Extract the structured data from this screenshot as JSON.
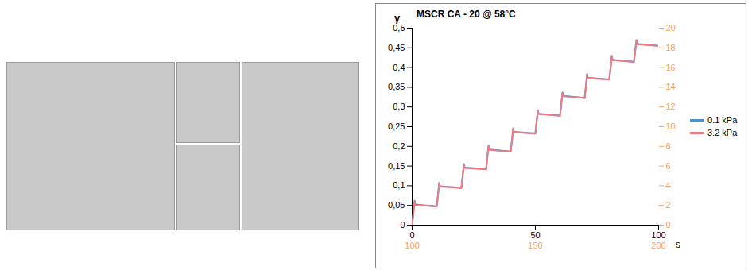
{
  "chart_data": {
    "type": "line",
    "title": "MSCR CA - 20 @ 58°C",
    "y_label": "γ",
    "x_label": "s",
    "xlim": [
      0,
      100
    ],
    "xticks": [
      0,
      50,
      100
    ],
    "x2lim": [
      100,
      200
    ],
    "x2ticks": [
      100,
      150,
      200
    ],
    "ylim": [
      0,
      0.5
    ],
    "yticks": [
      0,
      {
        "value": 0.05,
        "label": "0,05"
      },
      {
        "value": 0.1,
        "label": "0,1"
      },
      {
        "value": 0.15,
        "label": "0,15"
      },
      {
        "value": 0.2,
        "label": "0,2"
      },
      {
        "value": 0.25,
        "label": "0,25"
      },
      {
        "value": 0.3,
        "label": "0,3"
      },
      {
        "value": 0.35,
        "label": "0,35"
      },
      {
        "value": 0.4,
        "label": "0,4"
      },
      {
        "value": 0.45,
        "label": "0,45"
      },
      {
        "value": 0.5,
        "label": "0,5"
      }
    ],
    "y2lim": [
      0,
      20
    ],
    "y2ticks": [
      0,
      2,
      4,
      6,
      8,
      10,
      12,
      14,
      16,
      18,
      20
    ],
    "legend": "right",
    "series": [
      {
        "name": "0.1 kPa",
        "color": "#4f8fd0",
        "x": [
          0,
          1,
          1.3,
          10,
          11,
          11.3,
          20,
          21,
          21.3,
          30,
          31,
          31.3,
          40,
          41,
          41.3,
          50,
          51,
          51.3,
          60,
          61,
          61.3,
          70,
          71,
          71.3,
          80,
          81,
          81.3,
          90,
          91,
          91.3,
          100
        ],
        "values": [
          0,
          0.062,
          0.052,
          0.048,
          0.108,
          0.099,
          0.095,
          0.155,
          0.146,
          0.142,
          0.202,
          0.192,
          0.187,
          0.246,
          0.237,
          0.233,
          0.292,
          0.283,
          0.278,
          0.337,
          0.328,
          0.323,
          0.384,
          0.374,
          0.37,
          0.43,
          0.42,
          0.415,
          0.47,
          0.46,
          0.455
        ]
      },
      {
        "name": "3.2 kPa",
        "color": "#f07a82",
        "axis": "y2",
        "x": [
          100,
          101,
          101.3,
          110,
          111,
          111.3,
          120,
          121,
          121.3,
          130,
          131,
          131.3,
          140,
          141,
          141.3,
          150,
          151,
          151.3,
          160,
          161,
          161.3,
          170,
          171,
          171.3,
          180,
          181,
          181.3,
          190,
          191,
          191.3,
          200
        ],
        "values": [
          0,
          2.44,
          2.04,
          1.9,
          4.28,
          3.92,
          3.78,
          6.16,
          5.8,
          5.66,
          8.04,
          7.64,
          7.46,
          9.8,
          9.44,
          9.3,
          11.64,
          11.28,
          11.1,
          13.44,
          13.08,
          12.9,
          15.32,
          14.92,
          14.78,
          17.16,
          16.76,
          16.58,
          18.76,
          18.36,
          18.2
        ]
      }
    ]
  }
}
